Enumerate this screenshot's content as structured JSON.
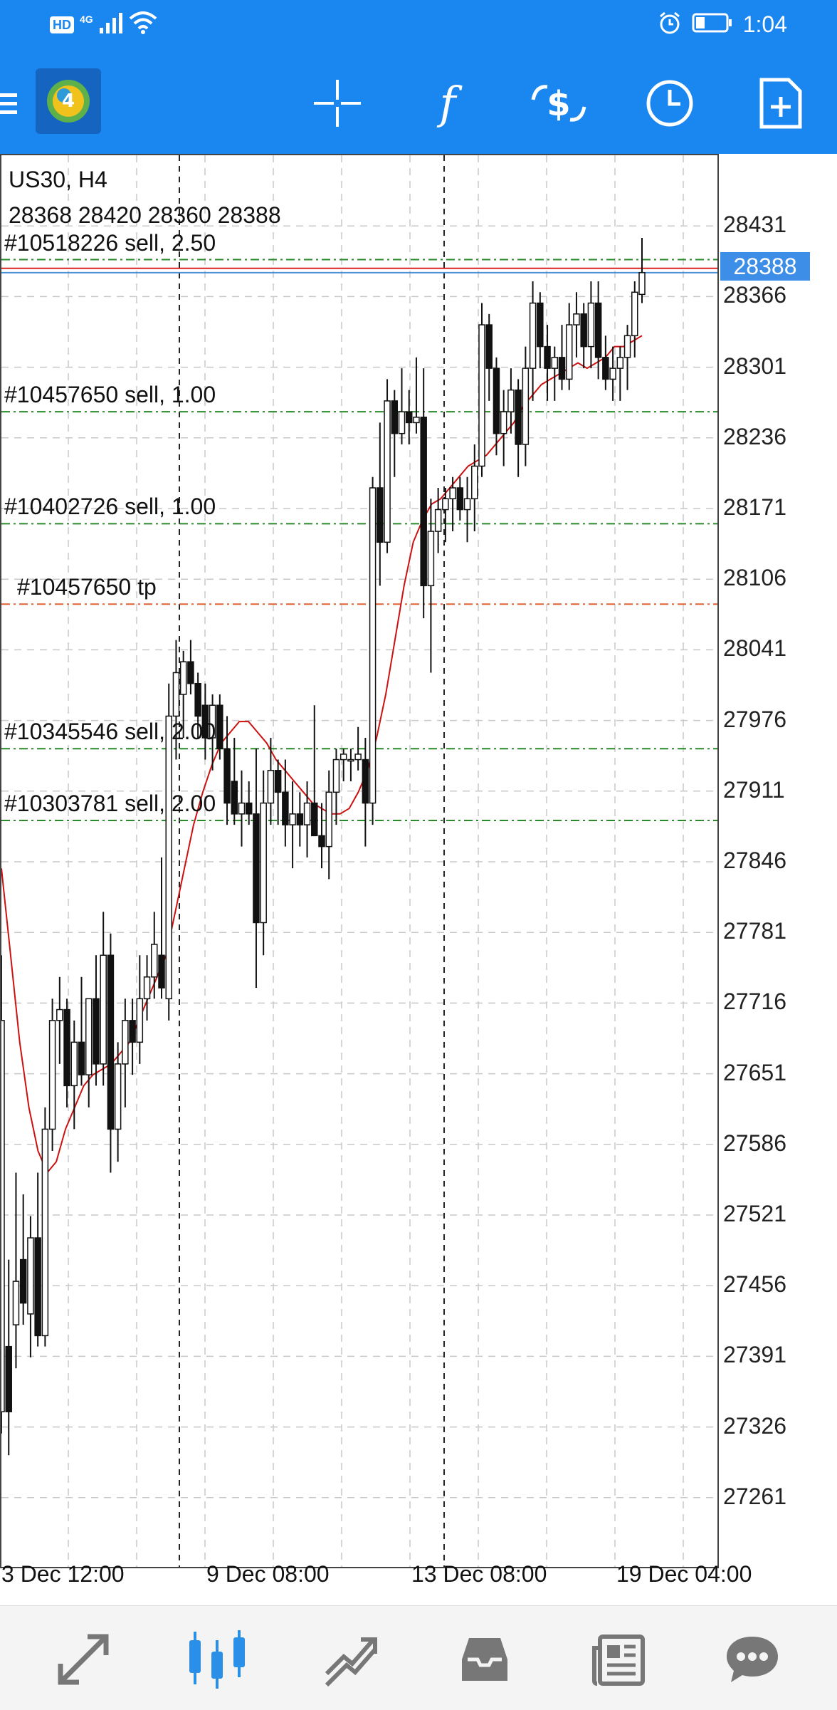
{
  "status_bar": {
    "hd_label": "HD",
    "network_label": "4G",
    "time": "1:04",
    "icons": [
      "signal-icon",
      "wifi-icon",
      "alarm-icon",
      "battery-icon"
    ]
  },
  "toolbar": {
    "icons": [
      "menu-icon",
      "metatrader-logo",
      "crosshair-icon",
      "indicators-icon",
      "trade-icon",
      "timeframe-clock-icon",
      "new-order-icon"
    ]
  },
  "chart": {
    "symbol_timeframe": "US30, H4",
    "ohlc": "28368 28420 28360 28388",
    "current_price": "28388",
    "price_labels": [
      "28431",
      "28366",
      "28301",
      "28236",
      "28171",
      "28106",
      "28041",
      "27976",
      "27911",
      "27846",
      "27781",
      "27716",
      "27651",
      "27586",
      "27521",
      "27456",
      "27391",
      "27326",
      "27261"
    ],
    "date_labels": [
      "3 Dec 12:00",
      "9 Dec 08:00",
      "13 Dec 08:00",
      "19 Dec 04:00"
    ],
    "orders": [
      {
        "label": "#10518226 sell, 2.50",
        "price": 28400
      },
      {
        "label": "#10457650 sell, 1.00",
        "price": 28260
      },
      {
        "label": "#10402726 sell, 1.00",
        "price": 28157
      },
      {
        "label": "#10457650 tp",
        "price": 28083
      },
      {
        "label": "#10345546 sell, 2.00",
        "price": 27950
      },
      {
        "label": "#10303781 sell, 2.00",
        "price": 27884
      }
    ],
    "colors": {
      "order_line": "#2a8a2a",
      "tp_line": "#e06030",
      "ma_line": "#cc1111",
      "current_price_box": "#3d8ee6",
      "accent": "#1a86f0"
    }
  },
  "chart_data": {
    "type": "candlestick",
    "ylim": [
      27196,
      28496
    ],
    "x_ticks": [
      "3 Dec 12:00",
      "9 Dec 08:00",
      "13 Dec 08:00",
      "19 Dec 04:00"
    ],
    "candles": [
      {
        "o": 27340,
        "h": 27760,
        "l": 27320,
        "c": 27700
      },
      {
        "o": 27400,
        "h": 27480,
        "l": 27300,
        "c": 27340
      },
      {
        "o": 27420,
        "h": 27560,
        "l": 27380,
        "c": 27460
      },
      {
        "o": 27480,
        "h": 27540,
        "l": 27420,
        "c": 27440
      },
      {
        "o": 27430,
        "h": 27520,
        "l": 27390,
        "c": 27500
      },
      {
        "o": 27500,
        "h": 27560,
        "l": 27400,
        "c": 27410
      },
      {
        "o": 27410,
        "h": 27620,
        "l": 27400,
        "c": 27600
      },
      {
        "o": 27600,
        "h": 27720,
        "l": 27580,
        "c": 27700
      },
      {
        "o": 27700,
        "h": 27740,
        "l": 27660,
        "c": 27710
      },
      {
        "o": 27710,
        "h": 27720,
        "l": 27620,
        "c": 27640
      },
      {
        "o": 27640,
        "h": 27700,
        "l": 27600,
        "c": 27680
      },
      {
        "o": 27680,
        "h": 27740,
        "l": 27640,
        "c": 27650
      },
      {
        "o": 27650,
        "h": 27720,
        "l": 27620,
        "c": 27720
      },
      {
        "o": 27720,
        "h": 27760,
        "l": 27640,
        "c": 27660
      },
      {
        "o": 27660,
        "h": 27800,
        "l": 27640,
        "c": 27760
      },
      {
        "o": 27760,
        "h": 27780,
        "l": 27560,
        "c": 27600
      },
      {
        "o": 27600,
        "h": 27680,
        "l": 27570,
        "c": 27660
      },
      {
        "o": 27660,
        "h": 27720,
        "l": 27620,
        "c": 27700
      },
      {
        "o": 27700,
        "h": 27720,
        "l": 27650,
        "c": 27680
      },
      {
        "o": 27680,
        "h": 27760,
        "l": 27660,
        "c": 27720
      },
      {
        "o": 27720,
        "h": 27760,
        "l": 27700,
        "c": 27740
      },
      {
        "o": 27740,
        "h": 27800,
        "l": 27720,
        "c": 27770
      },
      {
        "o": 27760,
        "h": 27850,
        "l": 27720,
        "c": 27730
      },
      {
        "o": 27720,
        "h": 28010,
        "l": 27700,
        "c": 27980
      },
      {
        "o": 27980,
        "h": 28050,
        "l": 27940,
        "c": 28020
      },
      {
        "o": 28000,
        "h": 28040,
        "l": 27960,
        "c": 28030
      },
      {
        "o": 28030,
        "h": 28050,
        "l": 28000,
        "c": 28010
      },
      {
        "o": 28010,
        "h": 28020,
        "l": 27960,
        "c": 27980
      },
      {
        "o": 27990,
        "h": 28010,
        "l": 27940,
        "c": 27960
      },
      {
        "o": 27960,
        "h": 28000,
        "l": 27930,
        "c": 27990
      },
      {
        "o": 27990,
        "h": 28000,
        "l": 27940,
        "c": 27950
      },
      {
        "o": 27950,
        "h": 27980,
        "l": 27880,
        "c": 27900
      },
      {
        "o": 27920,
        "h": 27960,
        "l": 27880,
        "c": 27890
      },
      {
        "o": 27890,
        "h": 27930,
        "l": 27860,
        "c": 27900
      },
      {
        "o": 27900,
        "h": 27920,
        "l": 27880,
        "c": 27890
      },
      {
        "o": 27890,
        "h": 27950,
        "l": 27730,
        "c": 27790
      },
      {
        "o": 27790,
        "h": 27930,
        "l": 27760,
        "c": 27900
      },
      {
        "o": 27900,
        "h": 27960,
        "l": 27880,
        "c": 27930
      },
      {
        "o": 27930,
        "h": 27940,
        "l": 27880,
        "c": 27910
      },
      {
        "o": 27910,
        "h": 27940,
        "l": 27860,
        "c": 27880
      },
      {
        "o": 27880,
        "h": 27920,
        "l": 27840,
        "c": 27890
      },
      {
        "o": 27890,
        "h": 27910,
        "l": 27860,
        "c": 27880
      },
      {
        "o": 27880,
        "h": 27920,
        "l": 27850,
        "c": 27900
      },
      {
        "o": 27900,
        "h": 27990,
        "l": 27870,
        "c": 27870
      },
      {
        "o": 27870,
        "h": 27900,
        "l": 27840,
        "c": 27860
      },
      {
        "o": 27860,
        "h": 27930,
        "l": 27830,
        "c": 27910
      },
      {
        "o": 27910,
        "h": 27950,
        "l": 27880,
        "c": 27940
      },
      {
        "o": 27940,
        "h": 27950,
        "l": 27920,
        "c": 27945
      },
      {
        "o": 27940,
        "h": 27950,
        "l": 27920,
        "c": 27940
      },
      {
        "o": 27940,
        "h": 27970,
        "l": 27930,
        "c": 27945
      },
      {
        "o": 27940,
        "h": 27960,
        "l": 27860,
        "c": 27900
      },
      {
        "o": 27900,
        "h": 28200,
        "l": 27880,
        "c": 28190
      },
      {
        "o": 28190,
        "h": 28250,
        "l": 28100,
        "c": 28140
      },
      {
        "o": 28140,
        "h": 28290,
        "l": 28130,
        "c": 28270
      },
      {
        "o": 28270,
        "h": 28280,
        "l": 28200,
        "c": 28240
      },
      {
        "o": 28240,
        "h": 28300,
        "l": 28230,
        "c": 28260
      },
      {
        "o": 28260,
        "h": 28280,
        "l": 28230,
        "c": 28250
      },
      {
        "o": 28250,
        "h": 28310,
        "l": 28240,
        "c": 28255
      },
      {
        "o": 28255,
        "h": 28300,
        "l": 28070,
        "c": 28100
      },
      {
        "o": 28100,
        "h": 28180,
        "l": 28020,
        "c": 28150
      },
      {
        "o": 28150,
        "h": 28190,
        "l": 28130,
        "c": 28170
      },
      {
        "o": 28170,
        "h": 28190,
        "l": 28140,
        "c": 28180
      },
      {
        "o": 28180,
        "h": 28200,
        "l": 28150,
        "c": 28190
      },
      {
        "o": 28190,
        "h": 28200,
        "l": 28160,
        "c": 28170
      },
      {
        "o": 28170,
        "h": 28200,
        "l": 28140,
        "c": 28180
      },
      {
        "o": 28180,
        "h": 28230,
        "l": 28150,
        "c": 28210
      },
      {
        "o": 28210,
        "h": 28360,
        "l": 28200,
        "c": 28340
      },
      {
        "o": 28340,
        "h": 28350,
        "l": 28270,
        "c": 28300
      },
      {
        "o": 28300,
        "h": 28310,
        "l": 28220,
        "c": 28240
      },
      {
        "o": 28240,
        "h": 28280,
        "l": 28210,
        "c": 28260
      },
      {
        "o": 28260,
        "h": 28300,
        "l": 28240,
        "c": 28280
      },
      {
        "o": 28280,
        "h": 28290,
        "l": 28200,
        "c": 28230
      },
      {
        "o": 28230,
        "h": 28320,
        "l": 28210,
        "c": 28300
      },
      {
        "o": 28300,
        "h": 28380,
        "l": 28270,
        "c": 28360
      },
      {
        "o": 28360,
        "h": 28370,
        "l": 28300,
        "c": 28320
      },
      {
        "o": 28320,
        "h": 28340,
        "l": 28270,
        "c": 28300
      },
      {
        "o": 28300,
        "h": 28320,
        "l": 28270,
        "c": 28310
      },
      {
        "o": 28310,
        "h": 28340,
        "l": 28280,
        "c": 28290
      },
      {
        "o": 28290,
        "h": 28360,
        "l": 28280,
        "c": 28340
      },
      {
        "o": 28340,
        "h": 28370,
        "l": 28310,
        "c": 28350
      },
      {
        "o": 28350,
        "h": 28360,
        "l": 28300,
        "c": 28320
      },
      {
        "o": 28320,
        "h": 28380,
        "l": 28300,
        "c": 28360
      },
      {
        "o": 28360,
        "h": 28380,
        "l": 28290,
        "c": 28310
      },
      {
        "o": 28310,
        "h": 28330,
        "l": 28280,
        "c": 28290
      },
      {
        "o": 28290,
        "h": 28320,
        "l": 28270,
        "c": 28300
      },
      {
        "o": 28300,
        "h": 28320,
        "l": 28270,
        "c": 28310
      },
      {
        "o": 28310,
        "h": 28340,
        "l": 28280,
        "c": 28330
      },
      {
        "o": 28330,
        "h": 28380,
        "l": 28310,
        "c": 28370
      },
      {
        "o": 28368,
        "h": 28420,
        "l": 28360,
        "c": 28388
      }
    ],
    "moving_average": [
      27840,
      27760,
      27680,
      27620,
      27580,
      27560,
      27570,
      27600,
      27620,
      27640,
      27650,
      27655,
      27660,
      27670,
      27680,
      27700,
      27720,
      27740,
      27760,
      27800,
      27840,
      27880,
      27910,
      27935,
      27955,
      27965,
      27975,
      27975,
      27965,
      27955,
      27940,
      27930,
      27920,
      27910,
      27900,
      27895,
      27890,
      27890,
      27895,
      27910,
      27930,
      27960,
      28000,
      28050,
      28100,
      28140,
      28160,
      28175,
      28180,
      28190,
      28200,
      28210,
      28215,
      28220,
      28230,
      28240,
      28250,
      28265,
      28275,
      28285,
      28290,
      28295,
      28300,
      28305,
      28300,
      28305,
      28310,
      28320,
      28320,
      28325,
      28330
    ]
  },
  "bottom_nav": {
    "icons": [
      "quotes-icon",
      "chart-icon",
      "trade-icon",
      "history-icon",
      "news-icon",
      "chat-icon"
    ],
    "active_index": 1
  }
}
